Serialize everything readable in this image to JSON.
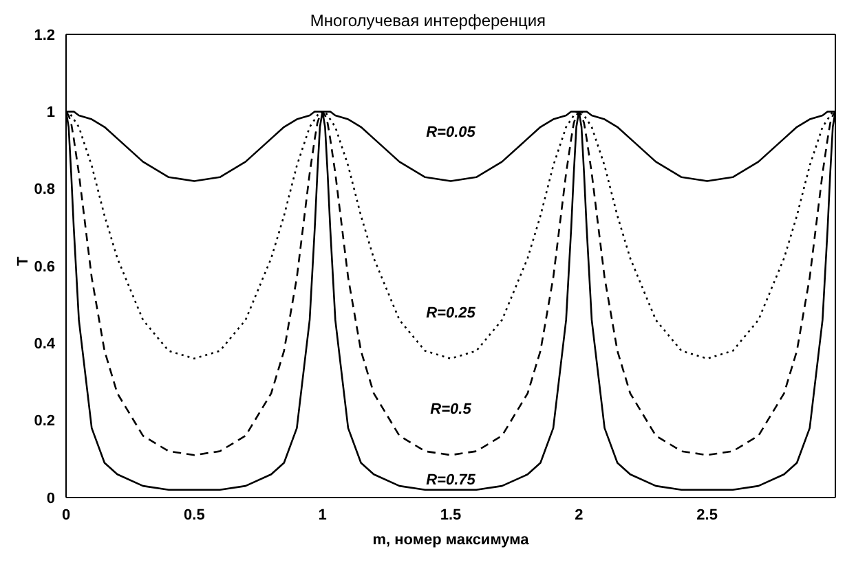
{
  "chart_data": {
    "type": "line",
    "title": "Многолучевая интерференция",
    "xlabel": "m, номер максимума",
    "ylabel": "T",
    "x": [
      0,
      0.01,
      0.02,
      0.03,
      0.05,
      0.1,
      0.15,
      0.2,
      0.3,
      0.4,
      0.5,
      0.6,
      0.7,
      0.8,
      0.85,
      0.9,
      0.95,
      0.97,
      0.98,
      0.99,
      1,
      1.01,
      1.02,
      1.03,
      1.05,
      1.1,
      1.15,
      1.2,
      1.3,
      1.4,
      1.5,
      1.6,
      1.7,
      1.8,
      1.85,
      1.9,
      1.95,
      1.97,
      1.98,
      1.99,
      2,
      2.01,
      2.02,
      2.03,
      2.05,
      2.1,
      2.15,
      2.2,
      2.3,
      2.4,
      2.5,
      2.6,
      2.7,
      2.8,
      2.85,
      2.9,
      2.95,
      2.97,
      2.98,
      2.99,
      3
    ],
    "series": [
      {
        "name": "R=0.05",
        "color": "#000000",
        "line_style": "solid",
        "values": [
          1,
          1,
          1,
          1,
          0.99,
          0.98,
          0.96,
          0.93,
          0.87,
          0.83,
          0.82,
          0.83,
          0.87,
          0.93,
          0.96,
          0.98,
          0.99,
          1,
          1,
          1,
          1,
          1,
          1,
          1,
          0.99,
          0.98,
          0.96,
          0.93,
          0.87,
          0.83,
          0.82,
          0.83,
          0.87,
          0.93,
          0.96,
          0.98,
          0.99,
          1,
          1,
          1,
          1,
          1,
          1,
          1,
          0.99,
          0.98,
          0.96,
          0.93,
          0.87,
          0.83,
          0.82,
          0.83,
          0.87,
          0.93,
          0.96,
          0.98,
          0.99,
          1,
          1,
          1,
          1
        ]
      },
      {
        "name": "R=0.25",
        "color": "#000000",
        "line_style": "dotted",
        "values": [
          1,
          1,
          0.99,
          0.98,
          0.96,
          0.86,
          0.73,
          0.62,
          0.46,
          0.38,
          0.36,
          0.38,
          0.46,
          0.62,
          0.73,
          0.86,
          0.96,
          0.98,
          0.99,
          1,
          1,
          1,
          0.99,
          0.98,
          0.96,
          0.86,
          0.73,
          0.62,
          0.46,
          0.38,
          0.36,
          0.38,
          0.46,
          0.62,
          0.73,
          0.86,
          0.96,
          0.98,
          0.99,
          1,
          1,
          1,
          0.99,
          0.98,
          0.96,
          0.86,
          0.73,
          0.62,
          0.46,
          0.38,
          0.36,
          0.38,
          0.46,
          0.62,
          0.73,
          0.86,
          0.96,
          0.98,
          0.99,
          1,
          1
        ]
      },
      {
        "name": "R=0.5",
        "color": "#000000",
        "line_style": "dashed",
        "values": [
          1,
          0.99,
          0.97,
          0.93,
          0.84,
          0.57,
          0.38,
          0.27,
          0.16,
          0.12,
          0.11,
          0.12,
          0.16,
          0.27,
          0.38,
          0.57,
          0.84,
          0.93,
          0.97,
          0.99,
          1,
          0.99,
          0.97,
          0.93,
          0.84,
          0.57,
          0.38,
          0.27,
          0.16,
          0.12,
          0.11,
          0.12,
          0.16,
          0.27,
          0.38,
          0.57,
          0.84,
          0.93,
          0.97,
          0.99,
          1,
          0.99,
          0.97,
          0.93,
          0.84,
          0.57,
          0.38,
          0.27,
          0.16,
          0.12,
          0.11,
          0.12,
          0.16,
          0.27,
          0.38,
          0.57,
          0.84,
          0.93,
          0.97,
          0.99,
          1
        ]
      },
      {
        "name": "R=0.75",
        "color": "#000000",
        "line_style": "solid",
        "values": [
          1,
          0.96,
          0.84,
          0.7,
          0.46,
          0.18,
          0.09,
          0.06,
          0.03,
          0.02,
          0.02,
          0.02,
          0.03,
          0.06,
          0.09,
          0.18,
          0.46,
          0.7,
          0.84,
          0.96,
          1,
          0.96,
          0.84,
          0.7,
          0.46,
          0.18,
          0.09,
          0.06,
          0.03,
          0.02,
          0.02,
          0.02,
          0.03,
          0.06,
          0.09,
          0.18,
          0.46,
          0.7,
          0.84,
          0.96,
          1,
          0.96,
          0.84,
          0.7,
          0.46,
          0.18,
          0.09,
          0.06,
          0.03,
          0.02,
          0.02,
          0.02,
          0.03,
          0.06,
          0.09,
          0.18,
          0.46,
          0.7,
          0.84,
          0.96,
          1
        ]
      }
    ],
    "xlim": [
      0,
      3
    ],
    "xticks": [
      0,
      0.5,
      1,
      1.5,
      2,
      2.5
    ],
    "ylim": [
      0,
      1.2
    ],
    "yticks": [
      0,
      0.2,
      0.4,
      0.6,
      0.8,
      1,
      1.2
    ],
    "grid": false,
    "marker": "none"
  }
}
